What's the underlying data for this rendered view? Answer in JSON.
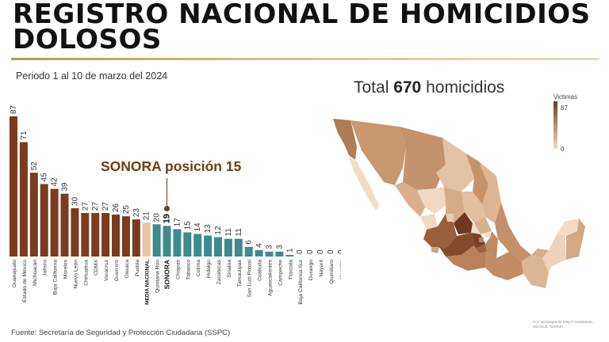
{
  "title": "REGISTRO NACIONAL DE HOMICIDIOS DOLOSOS",
  "period": "Periodo 1 al 10 de marzo del 2024",
  "total_prefix": "Total",
  "total_value": "670",
  "total_suffix": "homicidios",
  "legend": {
    "title": "Victimas",
    "max": "87",
    "min": "0"
  },
  "callout": "SONORA posición 15",
  "source": "Fuente: Secretaría de Seguridad y Protección Ciudadana (SSPC)",
  "credit": "Con tecnología de Bing © GeoNames, Microsoft, TomTom",
  "colors": {
    "brown": "#7a3b1e",
    "beige": "#e7c3a0",
    "teal": "#3e8a8c",
    "callout": "#6b3d18"
  },
  "chart_data": {
    "type": "bar",
    "categories": [
      "Guanajuato",
      "Estado de México",
      "Michoacán",
      "Jalisco",
      "Baja California",
      "Morelos",
      "Nuevo León",
      "Chihuahua",
      "CDMX",
      "Veracruz",
      "Guerrero",
      "Oaxaca",
      "Puebla",
      "MEDIA NACIONAL",
      "Quintana Roo",
      "SONORA",
      "Chiapas",
      "Tabasco",
      "Colima",
      "Hidalgo",
      "Zacatecas",
      "Sinaloa",
      "Tamaulipas",
      "San Luis Potosí",
      "Coahuila",
      "Aguascalientes",
      "Campeche",
      "Tlaxcala",
      "Baja California Sur",
      "Durango",
      "Nayarit",
      "Querétaro",
      "Yucatán"
    ],
    "values": [
      87,
      71,
      52,
      45,
      42,
      39,
      30,
      27,
      27,
      27,
      26,
      25,
      23,
      21,
      20,
      19,
      17,
      15,
      14,
      13,
      12,
      11,
      11,
      6,
      4,
      3,
      3,
      1,
      0,
      0,
      0,
      0,
      0
    ],
    "groups": [
      "above",
      "above",
      "above",
      "above",
      "above",
      "above",
      "above",
      "above",
      "above",
      "above",
      "above",
      "above",
      "above",
      "mean",
      "below",
      "below",
      "below",
      "below",
      "below",
      "below",
      "below",
      "below",
      "below",
      "below",
      "below",
      "below",
      "below",
      "below",
      "below",
      "below",
      "below",
      "below",
      "below"
    ],
    "highlight": "SONORA",
    "ylim": [
      0,
      87
    ]
  }
}
